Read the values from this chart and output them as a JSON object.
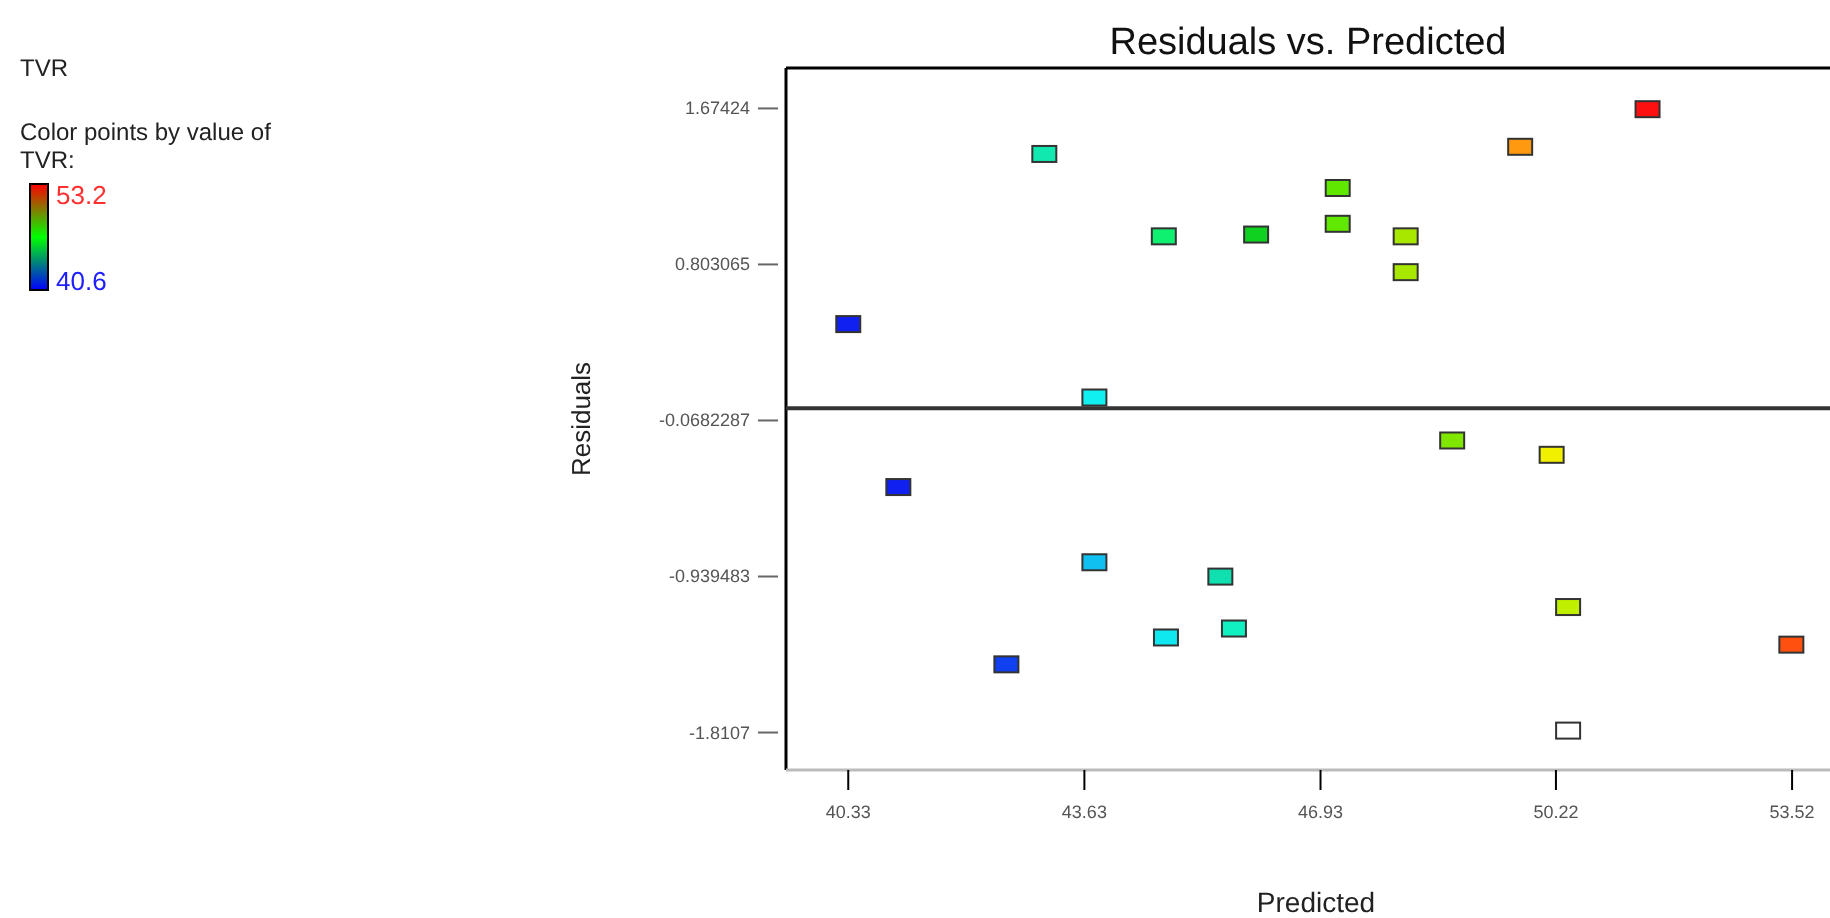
{
  "chart_data": {
    "type": "scatter",
    "title": "Residuals vs. Predicted",
    "subtitle": "TVR",
    "xlabel": "Predicted",
    "ylabel": "Residuals",
    "clabel": "Color points by value of TVR:",
    "clim": [
      40.6,
      53.2
    ],
    "cticks": [
      40.6,
      53.2
    ],
    "xlim": [
      39.46,
      54.05
    ],
    "ylim": [
      -2.02,
      1.9
    ],
    "xticks": [
      40.33,
      43.63,
      46.93,
      50.22,
      53.52
    ],
    "yticks": [
      -1.8107,
      -0.939483,
      -0.0682287,
      0.803065,
      1.67424
    ],
    "ref_lines": [
      {
        "axis": "y",
        "value": 0,
        "color": "#333333"
      }
    ],
    "marker": "square",
    "grid": false,
    "x": [
      51.5,
      49.72,
      43.07,
      47.17,
      47.17,
      44.74,
      46.03,
      48.12,
      48.12,
      40.33,
      43.77,
      48.77,
      50.16,
      41.03,
      43.77,
      45.53,
      45.72,
      44.77,
      42.54,
      50.39,
      53.51,
      50.39
    ],
    "values": [
      1.67,
      1.46,
      1.42,
      1.23,
      1.03,
      0.96,
      0.97,
      0.96,
      0.76,
      0.47,
      0.06,
      -0.18,
      -0.26,
      -0.44,
      -0.86,
      -0.94,
      -1.23,
      -1.28,
      -1.43,
      -1.11,
      -1.32,
      -1.8
    ],
    "colors": [
      "#ff1010",
      "#ff9a10",
      "#10e8b0",
      "#60e800",
      "#60e800",
      "#10f070",
      "#10d020",
      "#a8e800",
      "#a8e800",
      "#1020f0",
      "#10f0f0",
      "#80e800",
      "#f0f000",
      "#1020f0",
      "#10c0f0",
      "#10e0b0",
      "#10f0c0",
      "#10e8f0",
      "#1040f0",
      "#c0f000",
      "#ff5010",
      "#ffffff"
    ]
  }
}
